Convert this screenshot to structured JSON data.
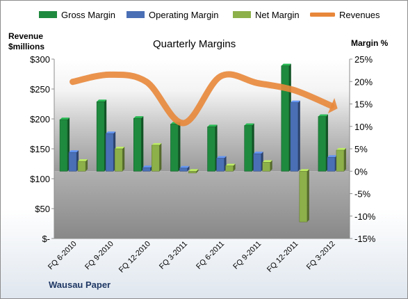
{
  "chart_data": {
    "type": "bar",
    "title": "Quarterly Margins",
    "left_axis_title": "Revenue $millions",
    "right_axis_title": "Margin %",
    "footer": "Wausau Paper",
    "categories": [
      "FQ 6-2010",
      "FQ 9-2010",
      "FQ 12-2010",
      "FQ 3-2011",
      "FQ 6-2011",
      "FQ 9-2011",
      "FQ 12-2011",
      "FQ 3-2012"
    ],
    "left_axis": {
      "min": 0,
      "max": 300,
      "step": 50,
      "tick_labels": [
        "$-",
        "$50",
        "$100",
        "$150",
        "$200",
        "$250",
        "$300"
      ]
    },
    "right_axis": {
      "min": -15,
      "max": 25,
      "step": 5,
      "tick_labels": [
        "-15%",
        "-10%",
        "-5%",
        "0%",
        "5%",
        "10%",
        "15%",
        "20%",
        "25%"
      ]
    },
    "series": [
      {
        "name": "Gross Margin",
        "axis": "right",
        "color": "#1e8a3e",
        "values": [
          11.5,
          15.5,
          11.8,
          10.5,
          9.9,
          10.2,
          23.5,
          12.2
        ]
      },
      {
        "name": "Operating Margin",
        "axis": "right",
        "color": "#4a6fb5",
        "values": [
          4.2,
          8.4,
          0.8,
          0.7,
          2.9,
          3.9,
          15.3,
          3.1
        ]
      },
      {
        "name": "Net Margin",
        "axis": "right",
        "color": "#8db04a",
        "values": [
          2.2,
          5.0,
          5.8,
          -0.4,
          1.2,
          2.0,
          -11.3,
          4.7
        ]
      },
      {
        "name": "Revenues",
        "axis": "left",
        "color": "#e8873a",
        "values": [
          262,
          274,
          262,
          193,
          271,
          260,
          248,
          222
        ]
      }
    ],
    "legend_position": "top",
    "grid": false
  }
}
